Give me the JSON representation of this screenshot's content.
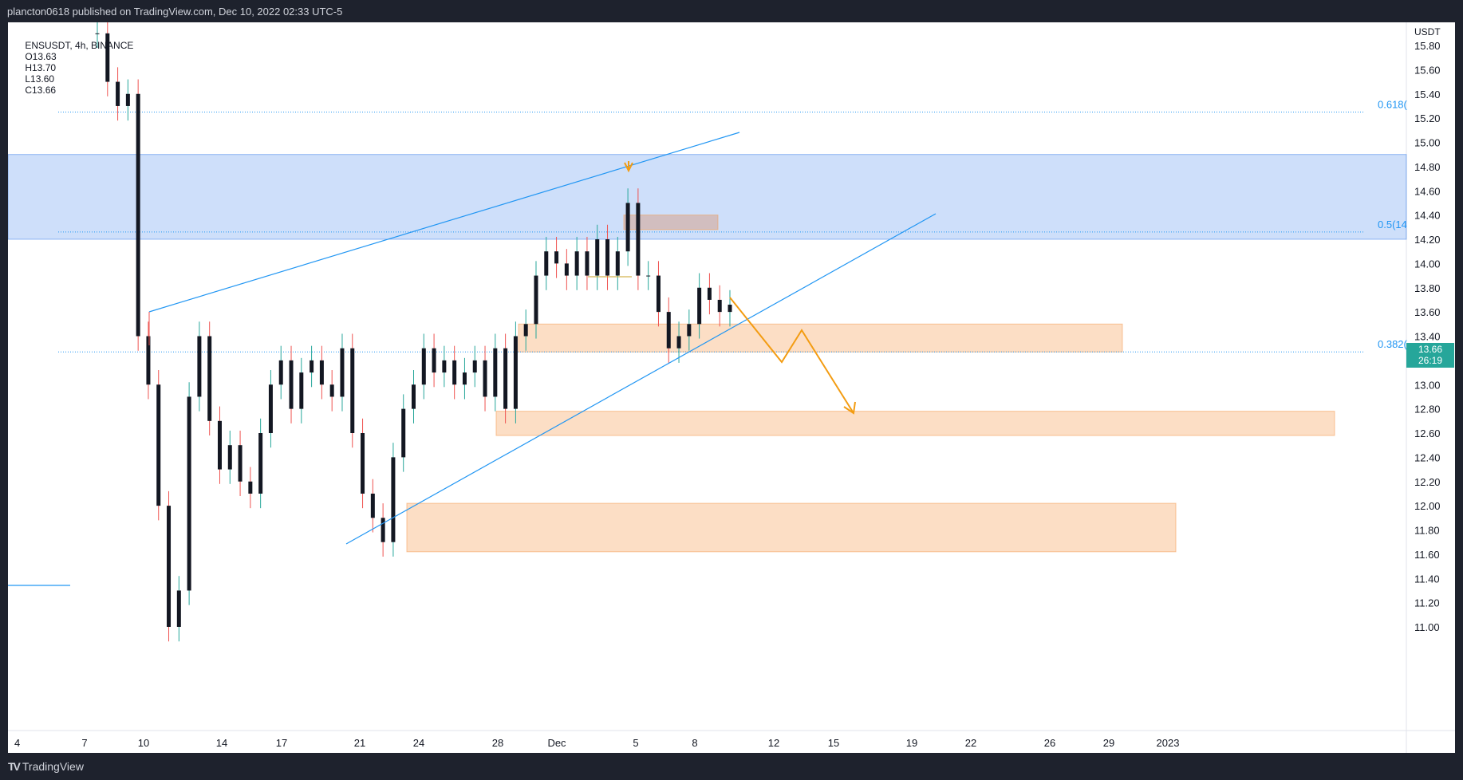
{
  "header": {
    "publish_text": "plancton0618 published on TradingView.com, Dec 10, 2022 02:33 UTC-5"
  },
  "legend": {
    "symbol": "ENSUSDT, 4h, BINANCE",
    "open": "O13.63",
    "high": "H13.70",
    "low": "L13.60",
    "close": "C13.66"
  },
  "price_axis": {
    "unit": "USDT",
    "current_price": "13.66",
    "countdown": "26:19"
  },
  "fib_levels": [
    {
      "label": "0.618(",
      "price": 15.25
    },
    {
      "label": "0.5(14",
      "price": 14.26
    },
    {
      "label": "0.382(",
      "price": 13.27
    }
  ],
  "colors": {
    "up": "#26a69a",
    "down": "#ef5350",
    "body": "#131722",
    "accent": "#2196f3",
    "zone_orange": "#f7c08a",
    "zone_blue": "#aec8f3",
    "arrow": "#f39c12"
  },
  "footer": {
    "brand": "TradingView",
    "logo_icon": "tradingview-logo-icon"
  },
  "chart_data": {
    "type": "candlestick",
    "symbol": "ENSUSDT",
    "interval": "4h",
    "exchange": "BINANCE",
    "ylim": [
      10.9,
      16.0
    ],
    "y_ticks": [
      "15.80",
      "15.60",
      "15.40",
      "15.20",
      "15.00",
      "14.80",
      "14.60",
      "14.40",
      "14.20",
      "14.00",
      "13.80",
      "13.60",
      "13.40",
      "13.20",
      "13.00",
      "12.80",
      "12.60",
      "12.40",
      "12.20",
      "12.00",
      "11.80",
      "11.60",
      "11.40",
      "11.20",
      "11.00"
    ],
    "x_ticks": [
      "4",
      "7",
      "10",
      "14",
      "17",
      "21",
      "24",
      "28",
      "Dec",
      "5",
      "8",
      "12",
      "15",
      "19",
      "22",
      "26",
      "29",
      "2023"
    ],
    "last": {
      "open": 13.63,
      "high": 13.7,
      "low": 13.6,
      "close": 13.66
    },
    "zones": [
      {
        "kind": "supply",
        "color": "blue",
        "from_price": 14.2,
        "to_price": 14.9
      },
      {
        "kind": "demand",
        "color": "orange",
        "from_price": 13.27,
        "to_price": 13.5
      },
      {
        "kind": "demand",
        "color": "orange",
        "from_price": 12.58,
        "to_price": 12.78
      },
      {
        "kind": "demand",
        "color": "orange",
        "from_price": 11.62,
        "to_price": 12.02
      },
      {
        "kind": "range",
        "color": "orange",
        "from_price": 14.28,
        "to_price": 14.4
      }
    ]
  }
}
